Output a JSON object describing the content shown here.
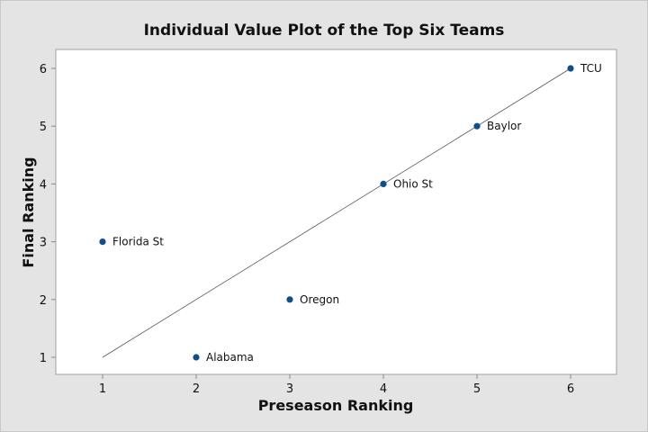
{
  "chart_data": {
    "type": "scatter",
    "title": "Individual Value Plot of the Top Six Teams",
    "xlabel": "Preseason Ranking",
    "ylabel": "Final Ranking",
    "xlim": [
      0.5,
      6.5
    ],
    "ylim": [
      0.75,
      6.35
    ],
    "xticks": [
      "1",
      "2",
      "3",
      "4",
      "5",
      "6"
    ],
    "yticks": [
      "1",
      "2",
      "3",
      "4",
      "5",
      "6"
    ],
    "points": [
      {
        "label": "Florida St",
        "x": 1,
        "y": 3
      },
      {
        "label": "Alabama",
        "x": 2,
        "y": 1
      },
      {
        "label": "Oregon",
        "x": 3,
        "y": 2
      },
      {
        "label": "Ohio St",
        "x": 4,
        "y": 4
      },
      {
        "label": "Baylor",
        "x": 5,
        "y": 5
      },
      {
        "label": "TCU",
        "x": 6,
        "y": 6
      }
    ],
    "reference_line": {
      "from": [
        1,
        1
      ],
      "to": [
        6,
        6
      ]
    },
    "grid": false,
    "colors": {
      "point": "#0d4f8b",
      "line": "#555555",
      "background": "#e4e4e4",
      "plot": "#ffffff"
    }
  }
}
